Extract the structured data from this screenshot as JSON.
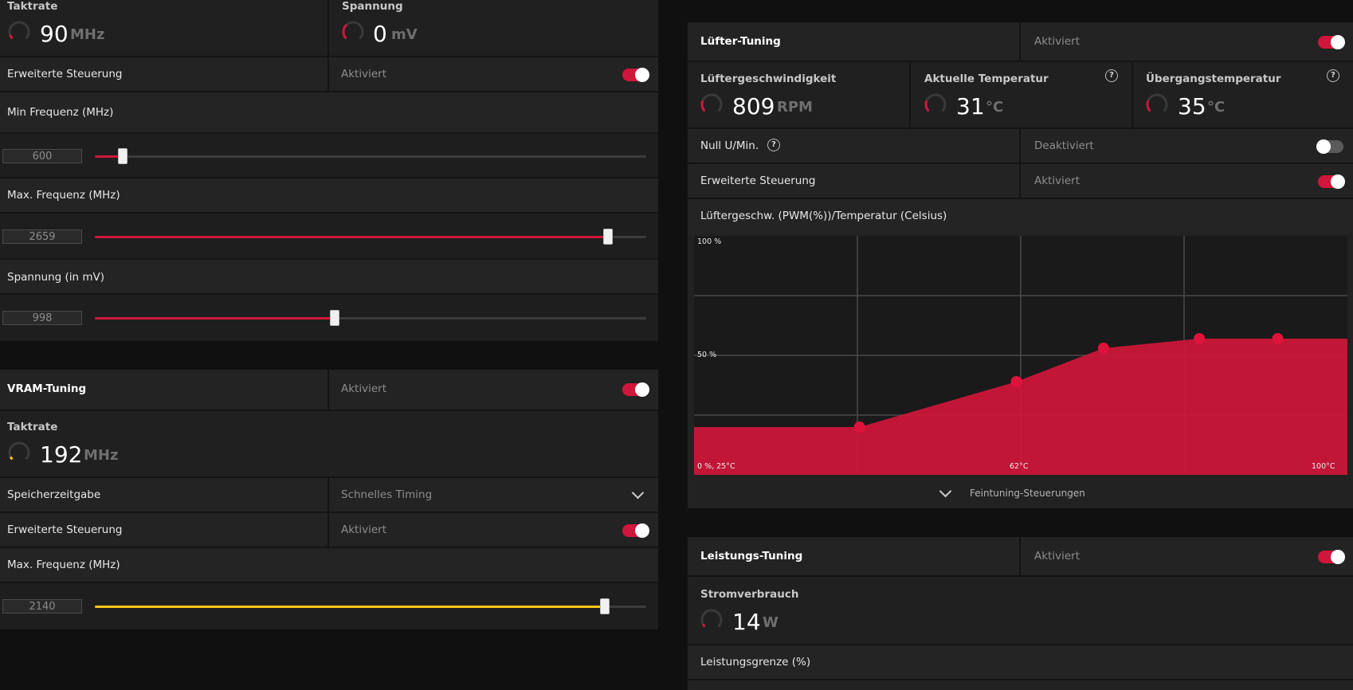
{
  "colors": {
    "accent": "#d0163a",
    "vram_accent": "#f5c518",
    "background": "#101010",
    "panel": "#222222"
  },
  "gpu": {
    "clock": {
      "title": "Taktrate",
      "value": "90",
      "unit": "MHz",
      "level": 0.1
    },
    "voltage": {
      "title": "Spannung",
      "value": "0",
      "unit": "mV",
      "level": 0.35
    },
    "advanced": {
      "label": "Erweiterte Steuerung",
      "status": "Aktiviert",
      "enabled": true
    },
    "min_freq": {
      "label": "Min Frequenz (MHz)",
      "value": "600",
      "fraction": 0.05
    },
    "max_freq": {
      "label": "Max. Frequenz (MHz)",
      "value": "2659",
      "fraction": 0.93
    },
    "volt_slider": {
      "label": "Spannung (in mV)",
      "value": "998",
      "fraction": 0.435
    }
  },
  "vram": {
    "header": {
      "title": "VRAM-Tuning",
      "status": "Aktiviert",
      "enabled": true
    },
    "clock": {
      "title": "Taktrate",
      "value": "192",
      "unit": "MHz",
      "level": 0.07
    },
    "timing": {
      "label": "Speicherzeitgabe",
      "selected": "Schnelles Timing"
    },
    "advanced": {
      "label": "Erweiterte Steuerung",
      "status": "Aktiviert",
      "enabled": true
    },
    "max_freq": {
      "label": "Max. Frequenz (MHz)",
      "value": "2140",
      "fraction": 0.925
    }
  },
  "fan": {
    "header": {
      "title": "Lüfter-Tuning",
      "status": "Aktiviert",
      "enabled": true
    },
    "speed": {
      "title": "Lüftergeschwindigkeit",
      "value": "809",
      "unit": "RPM",
      "level": 0.25
    },
    "temp": {
      "title": "Aktuelle Temperatur",
      "value": "31",
      "unit": "°C",
      "level": 0.25
    },
    "junction": {
      "title": "Übergangstemperatur",
      "value": "35",
      "unit": "°C",
      "level": 0.25
    },
    "zero_rpm": {
      "label": "Null U/Min.",
      "status": "Deaktiviert",
      "enabled": false
    },
    "advanced": {
      "label": "Erweiterte Steuerung",
      "status": "Aktiviert",
      "enabled": true
    },
    "curve_title": "Lüftergeschw. (PWM(%))/Temperatur (Celsius)",
    "fine_tuning_label": "Feintuning-Steuerungen",
    "help_glyph": "?"
  },
  "chart_data": {
    "type": "area",
    "title": "Lüftergeschw. (PWM(%))/Temperatur (Celsius)",
    "x": [
      25,
      44,
      62,
      72,
      83,
      92
    ],
    "y": [
      20,
      20,
      39,
      53,
      57,
      57
    ],
    "xlim": [
      25,
      100
    ],
    "ylim": [
      0,
      100
    ],
    "x_tick_labels": [
      "0 %, 25°C",
      "62°C",
      "100°C"
    ],
    "y_tick_labels": [
      "100 %",
      "50 %"
    ],
    "grid": true
  },
  "power": {
    "header": {
      "title": "Leistungs-Tuning",
      "status": "Aktiviert",
      "enabled": true
    },
    "consumption": {
      "title": "Stromverbrauch",
      "value": "14",
      "unit": "W",
      "level": 0.07
    },
    "limit": {
      "label": "Leistungsgrenze (%)"
    }
  }
}
